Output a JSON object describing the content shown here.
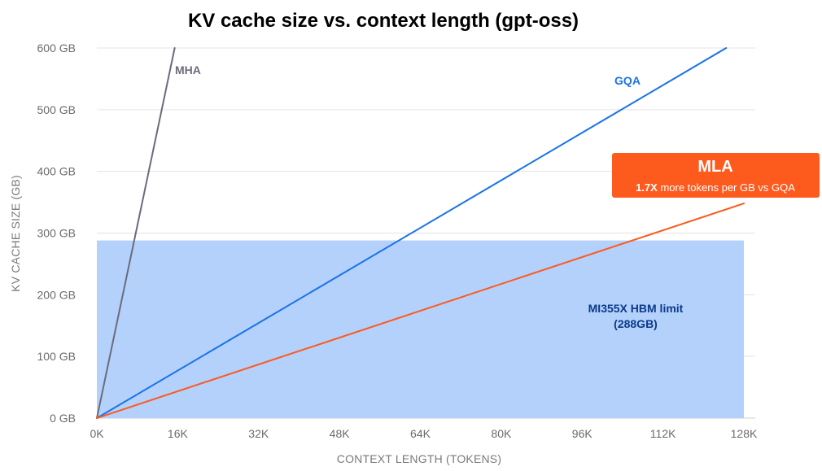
{
  "chart_data": {
    "type": "line",
    "title": "KV cache size vs. context length (gpt-oss)",
    "xlabel": "CONTEXT LENGTH (TOKENS)",
    "ylabel": "KV CACHE SIZE (GB)",
    "xlim": [
      0,
      128
    ],
    "ylim": [
      0,
      600
    ],
    "x_ticks": [
      {
        "value": 0,
        "label": "0K"
      },
      {
        "value": 16,
        "label": "16K"
      },
      {
        "value": 32,
        "label": "32K"
      },
      {
        "value": 48,
        "label": "48K"
      },
      {
        "value": 64,
        "label": "64K"
      },
      {
        "value": 80,
        "label": "80K"
      },
      {
        "value": 96,
        "label": "96K"
      },
      {
        "value": 112,
        "label": "112K"
      },
      {
        "value": 128,
        "label": "128K"
      }
    ],
    "y_ticks": [
      {
        "value": 0,
        "label": "0 GB"
      },
      {
        "value": 100,
        "label": "100 GB"
      },
      {
        "value": 200,
        "label": "200 GB"
      },
      {
        "value": 300,
        "label": "300 GB"
      },
      {
        "value": 400,
        "label": "400 GB"
      },
      {
        "value": 500,
        "label": "500 GB"
      },
      {
        "value": 600,
        "label": "600 GB"
      }
    ],
    "grid": "horizontal",
    "series": [
      {
        "name": "MHA",
        "color": "#6b6b7b",
        "points": [
          [
            0,
            0
          ],
          [
            15.4,
            600
          ]
        ]
      },
      {
        "name": "GQA",
        "color": "#1a73e8",
        "points": [
          [
            0,
            0
          ],
          [
            124.5,
            600
          ]
        ]
      },
      {
        "name": "MLA",
        "color": "#fd5a1e",
        "points": [
          [
            0,
            0
          ],
          [
            128,
            348
          ]
        ]
      }
    ],
    "band": {
      "label_line1": "MI355X HBM limit",
      "label_line2": "(288GB)",
      "x_range": [
        0,
        128
      ],
      "y_range": [
        0,
        288
      ],
      "fill": "#b3d1fb",
      "text_color": "#0c3a8a"
    },
    "callout": {
      "title": "MLA",
      "highlight": "1.7X",
      "text": " more tokens per GB vs GQA",
      "fill": "#fd5a1e"
    }
  }
}
